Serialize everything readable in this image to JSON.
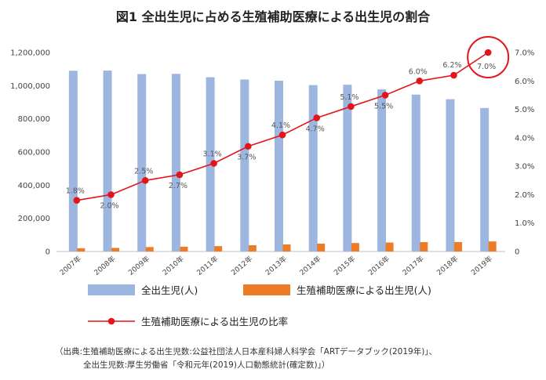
{
  "title": "図1 全出生児に占める生殖補助医療による出生児の割合",
  "chart_data": {
    "type": "bar+line",
    "categories": [
      "2007年",
      "2008年",
      "2009年",
      "2010年",
      "2011年",
      "2012年",
      "2013年",
      "2014年",
      "2015年",
      "2016年",
      "2017年",
      "2018年",
      "2019年"
    ],
    "series": [
      {
        "name": "全出生児(人)",
        "type": "bar",
        "axis": "left",
        "color": "#9db6e0",
        "values": [
          1089818,
          1091156,
          1070035,
          1071304,
          1050806,
          1037231,
          1029816,
          1003539,
          1005677,
          977242,
          946146,
          918400,
          865239
        ]
      },
      {
        "name": "生殖補助医療による出生児(人)",
        "type": "bar",
        "axis": "left",
        "color": "#ee7b25",
        "values": [
          19595,
          21704,
          26680,
          28945,
          32426,
          37953,
          42554,
          47322,
          51001,
          54110,
          56617,
          56979,
          60598
        ]
      },
      {
        "name": "生殖補助医療による出生児の比率",
        "type": "line",
        "axis": "right",
        "color": "#e3141a",
        "values": [
          1.8,
          2.0,
          2.5,
          2.7,
          3.1,
          3.7,
          4.1,
          4.7,
          5.1,
          5.5,
          6.0,
          6.2,
          7.0
        ],
        "labels": [
          "1.8%",
          "2.0%",
          "2.5%",
          "2.7%",
          "3.1%",
          "3.7%",
          "4.1%",
          "4.7%",
          "5.1%",
          "5.5%",
          "6.0%",
          "6.2%",
          "7.0%"
        ]
      }
    ],
    "left_axis": {
      "ylim": [
        0,
        1200000
      ],
      "ticks": [
        "0",
        "200,000",
        "400,000",
        "600,000",
        "800,000",
        "1,000,000",
        "1,200,000"
      ]
    },
    "right_axis": {
      "ylim": [
        0,
        7
      ],
      "ticks": [
        "0",
        "1.0%",
        "2.0%",
        "3.0%",
        "4.0%",
        "5.0%",
        "6.0%",
        "7.0%"
      ]
    },
    "highlight": {
      "category": "2019年",
      "shape": "circle",
      "color": "#e3141a"
    },
    "legend_placement": "bottom",
    "grid": false
  },
  "legend": {
    "bar1": "全出生児(人)",
    "bar2": "生殖補助医療による出生児(人)",
    "line": "生殖補助医療による出生児の比率"
  },
  "source": {
    "line1": "（出典:生殖補助医療による出生児数:公益社団法人日本産科婦人科学会「ARTデータブック(2019年)」、",
    "line2": "全出生児数:厚生労働省「令和元年(2019)人口動態統計(確定数)」）"
  }
}
